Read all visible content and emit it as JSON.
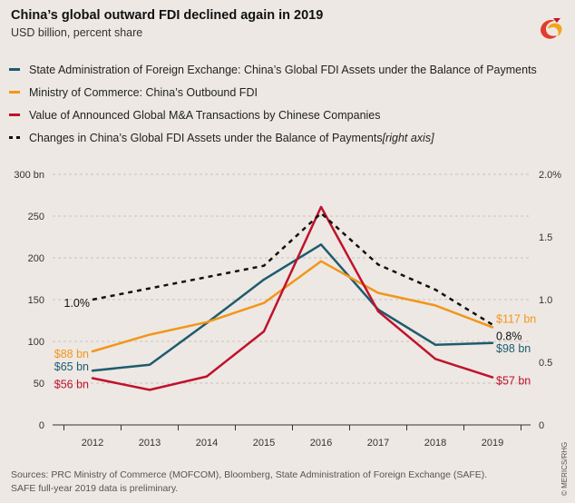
{
  "header": {
    "title": "China’s global outward FDI declined again in 2019",
    "subtitle": "USD billion, percent share"
  },
  "legend": {
    "items": [
      {
        "label": "State Administration of Foreign Exchange: China’s Global FDI Assets under the Balance of Payments",
        "suffix": "",
        "color": "#1e5b6e",
        "style": "solid"
      },
      {
        "label": "Ministry of Commerce: China’s Outbound FDI",
        "suffix": "",
        "color": "#f2961a",
        "style": "solid"
      },
      {
        "label": "Value of Announced Global M&A Transactions by Chinese Companies",
        "suffix": "",
        "color": "#c0122c",
        "style": "solid"
      },
      {
        "label": "Changes in China’s Global FDI Assets under the Balance of Payments ",
        "suffix": "[right axis]",
        "color": "#111111",
        "style": "dotted"
      }
    ]
  },
  "chart_data": {
    "type": "line",
    "categories": [
      "2012",
      "2013",
      "2014",
      "2015",
      "2016",
      "2017",
      "2018",
      "2019"
    ],
    "y_left": {
      "ticks": [
        "0",
        "50",
        "100",
        "150",
        "200",
        "250",
        "300 bn"
      ],
      "range": [
        0,
        300
      ]
    },
    "y_right": {
      "ticks": [
        "0",
        "0.5",
        "1.0",
        "1.5",
        "2.0%"
      ],
      "range": [
        0,
        2.0
      ]
    },
    "series": [
      {
        "name": "State Administration of Foreign Exchange: China’s Global FDI Assets under the Balance of Payments",
        "color": "#1e5b6e",
        "axis": "left",
        "style": "solid",
        "values": [
          65,
          72,
          122,
          174,
          216,
          138,
          96,
          98
        ]
      },
      {
        "name": "Ministry of Commerce: China’s Outbound FDI",
        "color": "#f2961a",
        "axis": "left",
        "style": "solid",
        "values": [
          88,
          108,
          123,
          146,
          196,
          158,
          143,
          117
        ]
      },
      {
        "name": "Value of Announced Global M&A Transactions by Chinese Companies",
        "color": "#c0122c",
        "axis": "left",
        "style": "solid",
        "values": [
          56,
          42,
          58,
          112,
          261,
          136,
          79,
          57
        ]
      },
      {
        "name": "Changes in China’s Global FDI Assets under the Balance of Payments",
        "color": "#111111",
        "axis": "right",
        "style": "dotted",
        "values": [
          1.0,
          1.09,
          1.18,
          1.27,
          1.69,
          1.28,
          1.08,
          0.8
        ]
      }
    ],
    "annotations": [
      {
        "text": "$65 bn",
        "series": 0,
        "point": 0,
        "side": "left",
        "color": "#1e5b6e"
      },
      {
        "text": "$88 bn",
        "series": 1,
        "point": 0,
        "side": "left",
        "color": "#f2961a"
      },
      {
        "text": "$56 bn",
        "series": 2,
        "point": 0,
        "side": "left",
        "color": "#c0122c"
      },
      {
        "text": "1.0%",
        "series": 3,
        "point": 0,
        "side": "left",
        "color": "#111111"
      },
      {
        "text": "$117 bn",
        "series": 1,
        "point": 7,
        "side": "right",
        "color": "#f2961a"
      },
      {
        "text": "$98 bn",
        "series": 0,
        "point": 7,
        "side": "right",
        "color": "#1e5b6e"
      },
      {
        "text": "$57 bn",
        "series": 2,
        "point": 7,
        "side": "right",
        "color": "#c0122c"
      },
      {
        "text": "0.8%",
        "series": 3,
        "point": 7,
        "side": "right",
        "color": "#111111"
      }
    ],
    "grid": true,
    "legend_position": "top-left"
  },
  "footer": {
    "line1": "Sources: PRC Ministry of Commerce (MOFCOM), Bloomberg, State Administration of Foreign Exchange (SAFE).",
    "line2": "SAFE full-year 2019 data is preliminary.",
    "copyright": "© MERICS/RHG"
  }
}
